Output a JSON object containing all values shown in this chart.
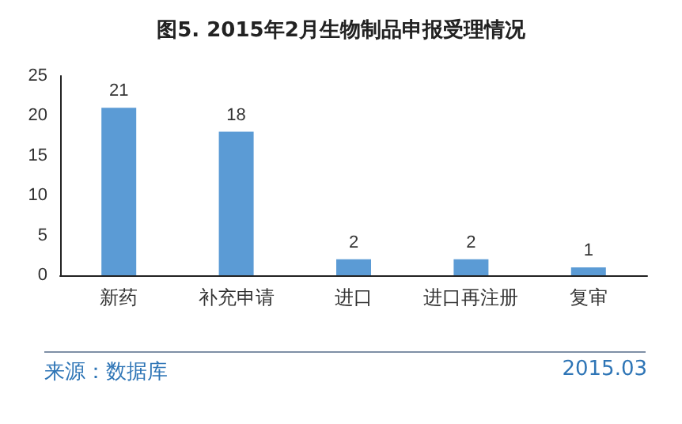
{
  "chart_data": {
    "type": "bar",
    "title": "图5. 2015年2月生物制品申报受理情况",
    "categories": [
      "新药",
      "补充申请",
      "进口",
      "进口再注册",
      "复审"
    ],
    "values": [
      21,
      18,
      2,
      2,
      1
    ],
    "color": "#5b9bd5",
    "ylim": [
      0,
      25
    ],
    "yticks": [
      0,
      5,
      10,
      15,
      20,
      25
    ],
    "grid": false,
    "data_labels": true,
    "annotations": [
      "来源：数据库",
      "2015.03"
    ]
  }
}
